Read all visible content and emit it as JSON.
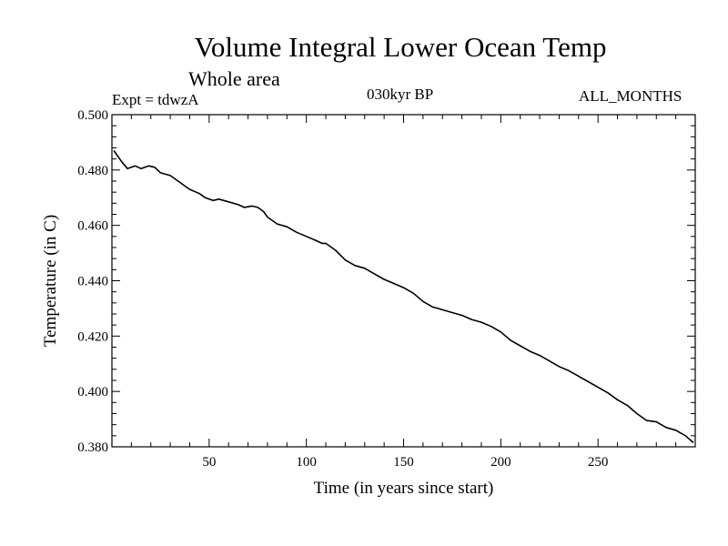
{
  "header": {
    "title": "Volume Integral Lower Ocean Temp",
    "subtitle": "Whole area",
    "expt": "Expt = tdwzA",
    "period": "030kyr BP",
    "months": "ALL_MONTHS"
  },
  "chart_data": {
    "type": "line",
    "title": "Volume Integral Lower Ocean Temp",
    "subtitle": "Whole area",
    "xlabel": "Time (in years since start)",
    "ylabel": "Temperature (in C)",
    "xlim": [
      0,
      300
    ],
    "ylim": [
      0.38,
      0.5
    ],
    "xticks": [
      50,
      100,
      150,
      200,
      250
    ],
    "xtick_labels": [
      "50",
      "100",
      "150",
      "200",
      "250"
    ],
    "yticks": [
      0.38,
      0.4,
      0.42,
      0.44,
      0.46,
      0.48,
      0.5
    ],
    "ytick_labels": [
      "0.380",
      "0.400",
      "0.420",
      "0.440",
      "0.460",
      "0.480",
      "0.500"
    ],
    "grid": false,
    "series": [
      {
        "x": [
          1,
          5,
          8,
          10,
          12,
          15,
          17,
          19,
          22,
          25,
          30,
          35,
          38,
          40,
          45,
          48,
          52,
          55,
          60,
          65,
          68,
          72,
          75,
          78,
          80,
          85,
          90,
          95,
          100,
          105,
          108,
          110,
          115,
          120,
          125,
          130,
          135,
          140,
          145,
          150,
          155,
          160,
          165,
          170,
          175,
          180,
          185,
          190,
          195,
          200,
          205,
          210,
          215,
          220,
          225,
          230,
          235,
          240,
          245,
          250,
          255,
          260,
          265,
          270,
          275,
          280,
          285,
          290,
          295,
          299
        ],
        "y": [
          0.487,
          0.483,
          0.4805,
          0.481,
          0.4815,
          0.4805,
          0.481,
          0.4815,
          0.481,
          0.479,
          0.478,
          0.4755,
          0.474,
          0.473,
          0.4715,
          0.47,
          0.469,
          0.4695,
          0.4685,
          0.4675,
          0.4665,
          0.467,
          0.4665,
          0.465,
          0.463,
          0.4605,
          0.4595,
          0.4575,
          0.456,
          0.4545,
          0.4535,
          0.4535,
          0.451,
          0.4475,
          0.4455,
          0.4445,
          0.4425,
          0.4405,
          0.439,
          0.4375,
          0.4355,
          0.4325,
          0.4305,
          0.4295,
          0.4285,
          0.4275,
          0.426,
          0.425,
          0.4235,
          0.4215,
          0.4185,
          0.4165,
          0.4145,
          0.413,
          0.411,
          0.409,
          0.4075,
          0.4055,
          0.4035,
          0.4015,
          0.3995,
          0.397,
          0.395,
          0.392,
          0.3895,
          0.389,
          0.387,
          0.386,
          0.384,
          0.3815
        ]
      }
    ]
  }
}
